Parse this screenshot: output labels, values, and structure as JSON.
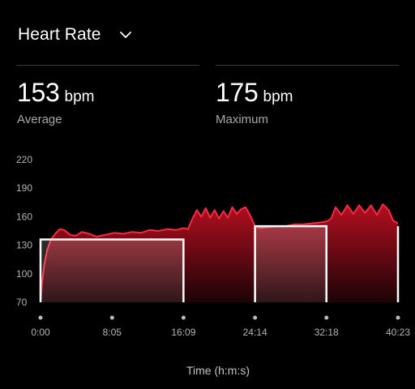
{
  "header": {
    "title": "Heart Rate",
    "dropdown_icon": "chevron-down-icon"
  },
  "stats": {
    "average": {
      "value": "153",
      "unit": "bpm",
      "label": "Average"
    },
    "maximum": {
      "value": "175",
      "unit": "bpm",
      "label": "Maximum"
    }
  },
  "colors": {
    "accent": "#e0102a",
    "line": "#ff2a3c",
    "fill_top": "#b30f20",
    "fill_bottom": "#1c0306",
    "interval_outline": "#ffffff",
    "divider": "#3b3b3b"
  },
  "chart_data": {
    "type": "area",
    "xlabel": "Time (h:m:s)",
    "ylabel": "",
    "x_unit": "seconds",
    "xlim": [
      0,
      2423
    ],
    "ylim": [
      70,
      220
    ],
    "yticks": [
      70,
      100,
      130,
      160,
      190,
      220
    ],
    "xticks": [
      {
        "value": 0,
        "label": "0:00"
      },
      {
        "value": 485,
        "label": "8:05"
      },
      {
        "value": 969,
        "label": "16:09"
      },
      {
        "value": 1454,
        "label": "24:14"
      },
      {
        "value": 1938,
        "label": "32:18"
      },
      {
        "value": 2423,
        "label": "40:23"
      }
    ],
    "grid": false,
    "series": [
      {
        "x": [
          0,
          10,
          25,
          45,
          70,
          100,
          130,
          160,
          200,
          240,
          280,
          330,
          380,
          440,
          500,
          560,
          620,
          680,
          740,
          800,
          860,
          920,
          969,
          1000,
          1030,
          1060,
          1090,
          1120,
          1150,
          1180,
          1210,
          1240,
          1270,
          1300,
          1330,
          1360,
          1390,
          1420,
          1454,
          1490,
          1540,
          1600,
          1660,
          1720,
          1780,
          1840,
          1900,
          1938,
          1970,
          2000,
          2040,
          2080,
          2120,
          2160,
          2200,
          2240,
          2280,
          2320,
          2360,
          2390,
          2423
        ],
        "y": [
          70,
          90,
          110,
          125,
          136,
          142,
          147,
          146,
          141,
          140,
          144,
          142,
          139,
          141,
          143,
          142,
          144,
          143,
          146,
          145,
          147,
          146,
          148,
          147,
          158,
          167,
          160,
          169,
          159,
          167,
          158,
          166,
          159,
          170,
          163,
          168,
          170,
          162,
          150,
          148,
          149,
          150,
          150,
          152,
          152,
          153,
          154,
          155,
          158,
          170,
          162,
          172,
          163,
          172,
          164,
          172,
          162,
          173,
          167,
          156,
          153
        ]
      }
    ],
    "intervals": [
      {
        "start": 0,
        "end": 969,
        "value": 136
      },
      {
        "start": 1454,
        "end": 1938,
        "value": 150
      },
      {
        "start": 2423,
        "end": 2423,
        "value": 150
      }
    ]
  }
}
